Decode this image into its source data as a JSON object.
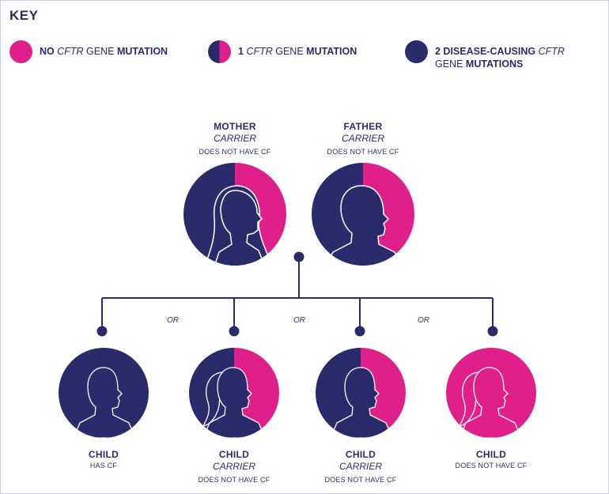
{
  "key": {
    "title": "KEY",
    "items": [
      {
        "text": "NO CFTR GENE MUTATION",
        "swatch": "pink"
      },
      {
        "text": "1 CFTR GENE MUTATION",
        "swatch": "half"
      },
      {
        "text": "2 DISEASE-CAUSING CFTR\nGENE MUTATIONS",
        "swatch": "navy"
      }
    ]
  },
  "parents": {
    "mother": {
      "role": "MOTHER",
      "status": "CARRIER",
      "description": "DOES NOT HAVE CF"
    },
    "father": {
      "role": "FATHER",
      "status": "CARRIER",
      "description": "DOES NOT HAVE CF"
    }
  },
  "children": [
    {
      "role": "CHILD",
      "status": "",
      "description": "HAS CF"
    },
    {
      "role": "CHILD",
      "status": "CARRIER",
      "description": "DOES NOT HAVE CF"
    },
    {
      "role": "CHILD",
      "status": "CARRIER",
      "description": "DOES NOT HAVE CF"
    },
    {
      "role": "CHILD",
      "status": "",
      "description": "DOES NOT HAVE CF"
    }
  ],
  "connectors": [
    "OR",
    "OR",
    "OR"
  ],
  "colors": {
    "navy": "#2b2b6b",
    "pink": "#e0208a",
    "line": "#2b2b6b"
  }
}
